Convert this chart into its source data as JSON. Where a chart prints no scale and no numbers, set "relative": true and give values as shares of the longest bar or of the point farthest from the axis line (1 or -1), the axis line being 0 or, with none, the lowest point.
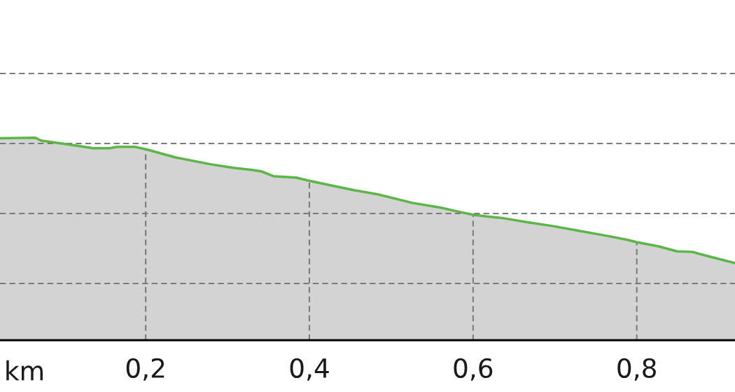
{
  "chart_data": {
    "type": "area",
    "relative": true,
    "xlabel": "km",
    "color": "#5ab646",
    "line_style": "solid",
    "grid": true,
    "tick_labels": "x",
    "xlim": [
      0.022,
      0.92
    ],
    "xticks": [
      {
        "value": 0.2,
        "label": "0,2"
      },
      {
        "value": 0.4,
        "label": "0,4"
      },
      {
        "value": 0.6,
        "label": "0,6"
      },
      {
        "value": 0.8,
        "label": "0,8"
      }
    ],
    "x": [
      0.022,
      0.065,
      0.072,
      0.108,
      0.136,
      0.156,
      0.165,
      0.187,
      0.202,
      0.236,
      0.279,
      0.307,
      0.33,
      0.341,
      0.356,
      0.384,
      0.398,
      0.426,
      0.456,
      0.484,
      0.526,
      0.561,
      0.584,
      0.601,
      0.621,
      0.638,
      0.669,
      0.697,
      0.726,
      0.768,
      0.789,
      0.8,
      0.826,
      0.849,
      0.868,
      0.883,
      0.92
    ],
    "values": [
      0.997,
      1.0,
      0.986,
      0.965,
      0.948,
      0.948,
      0.955,
      0.955,
      0.941,
      0.903,
      0.869,
      0.851,
      0.841,
      0.834,
      0.81,
      0.803,
      0.789,
      0.765,
      0.74,
      0.72,
      0.678,
      0.654,
      0.633,
      0.619,
      0.609,
      0.602,
      0.581,
      0.564,
      0.543,
      0.512,
      0.495,
      0.484,
      0.464,
      0.439,
      0.436,
      0.419,
      0.381
    ]
  }
}
